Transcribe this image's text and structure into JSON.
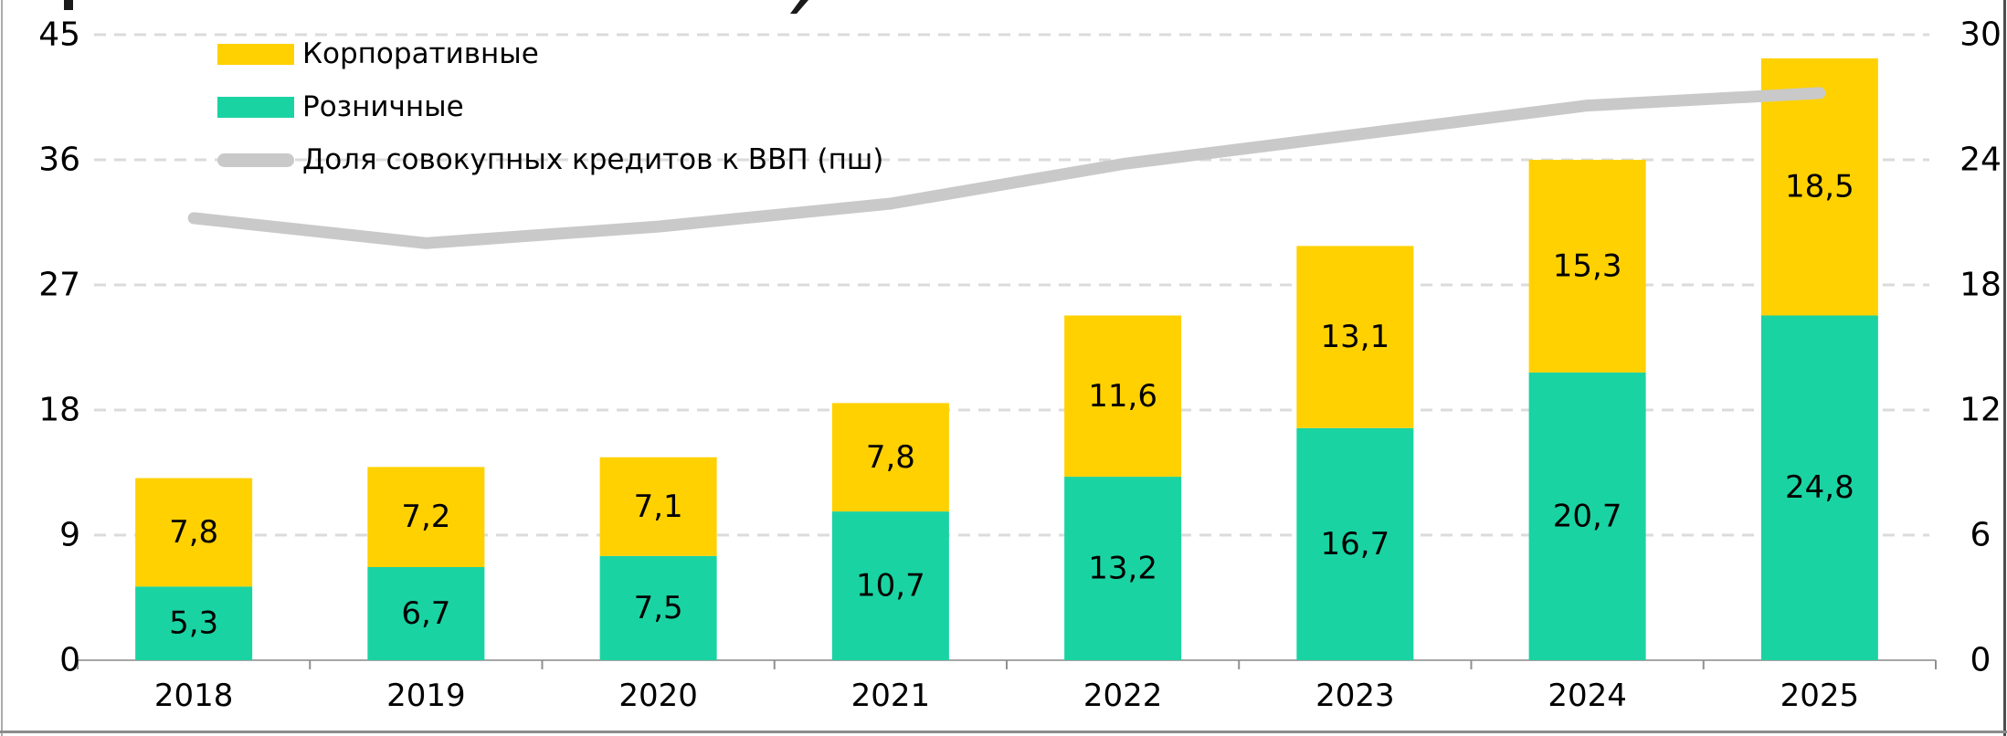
{
  "chart_data": {
    "type": "bar",
    "subtype": "stacked-columns-with-line",
    "categories": [
      "2018",
      "2019",
      "2020",
      "2021",
      "2022",
      "2023",
      "2024",
      "2025"
    ],
    "series": [
      {
        "name": "Розничные",
        "type": "bar",
        "stack_position": "bottom",
        "color": "#1AD3A2",
        "values": [
          5.3,
          6.7,
          7.5,
          10.7,
          13.2,
          16.7,
          20.7,
          24.8
        ]
      },
      {
        "name": "Корпоративные",
        "type": "bar",
        "stack_position": "top",
        "color": "#FFD100",
        "values": [
          7.8,
          7.2,
          7.1,
          7.8,
          11.6,
          13.1,
          15.3,
          18.5
        ]
      },
      {
        "name": "Доля совокупных кредитов к ВВП (пш)",
        "type": "line",
        "axis": "right",
        "color": "#C9C9C9",
        "values": [
          21.2,
          20.0,
          20.8,
          21.9,
          23.8,
          25.2,
          26.6,
          27.2
        ]
      }
    ],
    "left_axis": {
      "min": 0,
      "max": 45,
      "ticks": [
        "0",
        "9",
        "18",
        "27",
        "36",
        "45"
      ]
    },
    "right_axis": {
      "min": 0,
      "max": 30,
      "ticks": [
        "0",
        "6",
        "12",
        "18",
        "24",
        "30"
      ]
    },
    "legend_position": "top-left",
    "legend": [
      {
        "label": "Корпоративные",
        "swatch": "rect",
        "color": "#FFD100"
      },
      {
        "label": "Розничные",
        "swatch": "rect",
        "color": "#1AD3A2"
      },
      {
        "label": "Доля совокупных кредитов к ВВП (пш)",
        "swatch": "line",
        "color": "#C9C9C9"
      }
    ],
    "grid": {
      "horizontal": "dashed",
      "color": "#DBDBDB"
    },
    "decimal_separator": ",",
    "bar_label_color": "#000000"
  },
  "colors": {
    "axis_line": "#A6A6A6",
    "axis_tick": "#8F8F8F",
    "text": "#000000",
    "border_left": "#ABABAB",
    "border_bottom": "#8C8C8C",
    "border_right": "#4D4D4D",
    "title_fragment": "#1A1A1A"
  }
}
